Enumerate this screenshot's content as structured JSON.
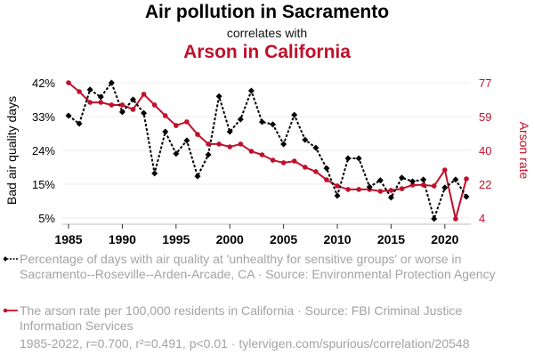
{
  "header": {
    "title": "Air pollution in Sacramento",
    "subtitle": "correlates with",
    "title2": "Arson in California"
  },
  "colors": {
    "series1": "#000000",
    "series2": "#c0102b",
    "legend_text": "#a3a3a3",
    "grid": "#eeeeee"
  },
  "legend": [
    {
      "icon": "black-dashed-line-diamond-marker",
      "text": "Percentage of days with air quality at 'unhealthy for sensitive groups' or worse in Sacramento--Roseville--Arden-Arcade, CA · Source: Environmental Protection Agency"
    },
    {
      "icon": "red-solid-line-circle-marker",
      "text": "The arson rate per 100,000 residents in California · Source: FBI Criminal Justice Information Services"
    }
  ],
  "footer": "1985-2022, r=0.700, r²=0.491, p<0.01 · tylervigen.com/spurious/correlation/20548",
  "chart_data": {
    "type": "line",
    "title": "Air pollution in Sacramento correlates with Arson in California",
    "x": [
      1985,
      1986,
      1987,
      1988,
      1989,
      1990,
      1991,
      1992,
      1993,
      1994,
      1995,
      1996,
      1997,
      1998,
      1999,
      2000,
      2001,
      2002,
      2003,
      2004,
      2005,
      2006,
      2007,
      2008,
      2009,
      2010,
      2011,
      2012,
      2013,
      2014,
      2015,
      2016,
      2017,
      2018,
      2019,
      2020,
      2021,
      2022
    ],
    "xlabel": "",
    "x_ticks": [
      "1985",
      "1990",
      "1995",
      "2000",
      "2005",
      "2010",
      "2015",
      "2020"
    ],
    "x_tick_values": [
      1985,
      1990,
      1995,
      2000,
      2005,
      2010,
      2015,
      2020
    ],
    "xlim": [
      1985,
      2022
    ],
    "grid": true,
    "legend_position": "bottom",
    "y_left": {
      "label": "Bad air quality days",
      "ticks": [
        "42%",
        "33%",
        "24%",
        "15%",
        "5%"
      ],
      "ylim": [
        5,
        42
      ]
    },
    "y_right": {
      "label": "Arson rate",
      "ticks": [
        "77",
        "59",
        "40",
        "22",
        "4"
      ],
      "ylim": [
        4,
        77
      ]
    },
    "series": [
      {
        "name": "Percentage of days with air quality at 'unhealthy for sensitive groups' or worse in Sacramento--Roseville--Arden-Arcade, CA",
        "axis": "left",
        "style": "dashed-diamond",
        "values": [
          33.0,
          30.8,
          40.1,
          38.1,
          42.0,
          34.0,
          37.4,
          33.7,
          17.2,
          28.6,
          22.6,
          26.2,
          16.4,
          22.3,
          38.3,
          28.6,
          32.0,
          39.8,
          31.3,
          30.6,
          25.2,
          33.2,
          26.4,
          24.2,
          18.6,
          11.1,
          21.3,
          21.3,
          13.5,
          15.3,
          10.6,
          16.0,
          15.0,
          15.5,
          4.8,
          13.3,
          15.5,
          10.8
        ]
      },
      {
        "name": "The arson rate per 100,000 residents in California",
        "axis": "right",
        "style": "solid-circle",
        "values": [
          77.0,
          72.2,
          66.4,
          66.4,
          65.0,
          65.0,
          62.6,
          70.8,
          65.0,
          59.2,
          53.9,
          55.9,
          49.1,
          43.9,
          43.9,
          42.4,
          43.9,
          40.0,
          38.1,
          35.2,
          33.8,
          34.7,
          31.4,
          29.0,
          24.6,
          21.3,
          19.4,
          19.4,
          19.4,
          18.4,
          18.9,
          19.8,
          21.8,
          21.8,
          21.3,
          29.9,
          3.5,
          25.1
        ]
      }
    ]
  }
}
